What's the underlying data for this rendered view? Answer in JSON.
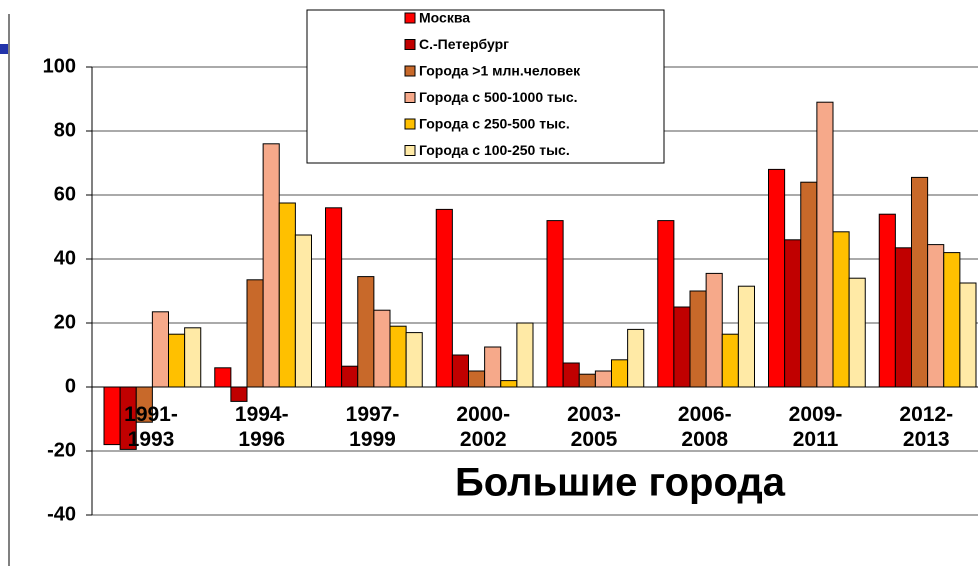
{
  "chart_data": {
    "type": "bar",
    "title": "Большие города",
    "categories": [
      "1991-\n1993",
      "1994-\n1996",
      "1997-\n1999",
      "2000-\n2002",
      "2003-\n2005",
      "2006-\n2008",
      "2009-\n2011",
      "2012-\n2013"
    ],
    "series": [
      {
        "name": "Москва",
        "color": "#ff0000",
        "values": [
          -18,
          6,
          56,
          55.5,
          52,
          52,
          68,
          54
        ]
      },
      {
        "name": "С.-Петербург",
        "color": "#c00000",
        "values": [
          -19.5,
          -4.5,
          6.5,
          10,
          7.5,
          25,
          46,
          43.5
        ]
      },
      {
        "name": "Города >1 млн.человек",
        "color": "#c8692a",
        "values": [
          -11,
          33.5,
          34.5,
          5,
          4,
          30,
          64,
          65.5
        ]
      },
      {
        "name": "Города с 500-1000 тыс.",
        "color": "#f6a98a",
        "values": [
          23.5,
          76,
          24,
          12.5,
          5,
          35.5,
          89,
          44.5
        ]
      },
      {
        "name": "Города с 250-500 тыс.",
        "color": "#ffc000",
        "values": [
          16.5,
          57.5,
          19,
          2,
          8.5,
          16.5,
          48.5,
          42
        ]
      },
      {
        "name": "Города с 100-250 тыс.",
        "color": "#ffeaa6",
        "values": [
          18.5,
          47.5,
          17,
          20,
          18,
          31.5,
          34,
          32.5
        ]
      }
    ],
    "ylim": [
      -40,
      100
    ],
    "yticks": [
      -40,
      -20,
      0,
      20,
      40,
      60,
      80,
      100
    ],
    "grid": true
  }
}
